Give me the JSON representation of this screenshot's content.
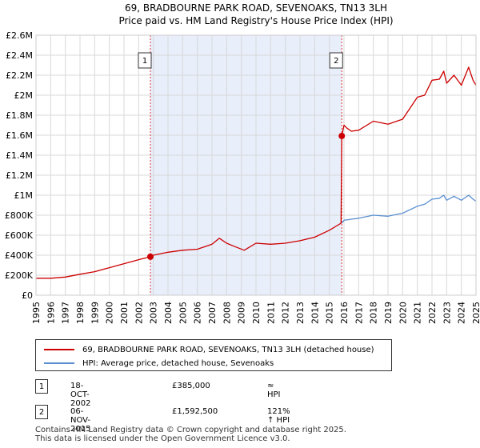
{
  "chart_data": {
    "type": "line",
    "title": "69, BRADBOURNE PARK ROAD, SEVENOAKS, TN13 3LH",
    "subtitle": "Price paid vs. HM Land Registry's House Price Index (HPI)",
    "xlabel": "",
    "ylabel": "",
    "xlim": [
      1995,
      2025
    ],
    "ylim": [
      0,
      2600000
    ],
    "y_ticks": [
      0,
      200000,
      400000,
      600000,
      800000,
      1000000,
      1200000,
      1400000,
      1600000,
      1800000,
      2000000,
      2200000,
      2400000,
      2600000
    ],
    "y_tick_labels": [
      "£0",
      "£200K",
      "£400K",
      "£600K",
      "£800K",
      "£1M",
      "£1.2M",
      "£1.4M",
      "£1.6M",
      "£1.8M",
      "£2M",
      "£2.2M",
      "£2.4M",
      "£2.6M"
    ],
    "x_ticks": [
      1995,
      1996,
      1997,
      1998,
      1999,
      2000,
      2001,
      2002,
      2003,
      2004,
      2005,
      2006,
      2007,
      2008,
      2009,
      2010,
      2011,
      2012,
      2013,
      2014,
      2015,
      2016,
      2017,
      2018,
      2019,
      2020,
      2021,
      2022,
      2023,
      2024,
      2025
    ],
    "x_tick_labels": [
      "1995",
      "1996",
      "1997",
      "1998",
      "1999",
      "2000",
      "2001",
      "2002",
      "2003",
      "2004",
      "2005",
      "2006",
      "2007",
      "2008",
      "2009",
      "2010",
      "2011",
      "2012",
      "2013",
      "2014",
      "2015",
      "2016",
      "2017",
      "2018",
      "2019",
      "2020",
      "2021",
      "2022",
      "2023",
      "2024",
      "2025"
    ],
    "grid": true,
    "shaded_region": [
      2002.8,
      2015.85
    ],
    "series": [
      {
        "name": "69, BRADBOURNE PARK ROAD, SEVENOAKS, TN13 3LH (detached house)",
        "color": "#cc0000",
        "x": [
          1995.0,
          1996.0,
          1997.0,
          1998.0,
          1999.0,
          2000.0,
          2001.0,
          2002.0,
          2002.8,
          2003.0,
          2004.0,
          2005.0,
          2006.0,
          2007.0,
          2007.5,
          2008.0,
          2008.5,
          2009.2,
          2010.0,
          2011.0,
          2012.0,
          2013.0,
          2014.0,
          2015.0,
          2015.8,
          2015.85,
          2016.0,
          2016.2,
          2016.5,
          2017.0,
          2018.0,
          2019.0,
          2020.0,
          2021.0,
          2021.5,
          2022.0,
          2022.5,
          2022.8,
          2023.0,
          2023.5,
          2024.0,
          2024.5,
          2024.8,
          2025.0
        ],
        "y": [
          170000,
          170000,
          182000,
          210000,
          235000,
          275000,
          315000,
          355000,
          385000,
          400000,
          430000,
          450000,
          460000,
          510000,
          570000,
          520000,
          490000,
          450000,
          520000,
          510000,
          520000,
          545000,
          580000,
          650000,
          720000,
          1592500,
          1700000,
          1670000,
          1640000,
          1650000,
          1740000,
          1710000,
          1760000,
          1980000,
          2000000,
          2150000,
          2160000,
          2240000,
          2120000,
          2200000,
          2100000,
          2280000,
          2150000,
          2100000
        ]
      },
      {
        "name": "HPI: Average price, detached house, Sevenoaks",
        "color": "#5b8fd0",
        "x": [
          2015.85,
          2016.0,
          2016.5,
          2017.0,
          2018.0,
          2019.0,
          2020.0,
          2021.0,
          2021.5,
          2022.0,
          2022.5,
          2022.8,
          2023.0,
          2023.5,
          2024.0,
          2024.5,
          2024.8,
          2025.0
        ],
        "y": [
          720000,
          750000,
          760000,
          770000,
          800000,
          790000,
          820000,
          890000,
          910000,
          960000,
          970000,
          1000000,
          950000,
          990000,
          950000,
          1000000,
          960000,
          940000
        ]
      }
    ],
    "sales": [
      {
        "label": "1",
        "year": 2002.8,
        "price": 385000
      },
      {
        "label": "2",
        "year": 2015.85,
        "price": 1592500
      }
    ]
  },
  "legend": [
    {
      "label": "69, BRADBOURNE PARK ROAD, SEVENOAKS, TN13 3LH (detached house)",
      "color": "#cc0000"
    },
    {
      "label": "HPI: Average price, detached house, Sevenoaks",
      "color": "#5b8fd0"
    }
  ],
  "annotations": [
    {
      "num": "1",
      "date": "18-OCT-2002",
      "price": "£385,000",
      "hpi": "≈ HPI"
    },
    {
      "num": "2",
      "date": "06-NOV-2015",
      "price": "£1,592,500",
      "hpi": "121% ↑ HPI"
    }
  ],
  "footer": {
    "line1": "Contains HM Land Registry data © Crown copyright and database right 2025.",
    "line2": "This data is licensed under the Open Government Licence v3.0."
  }
}
